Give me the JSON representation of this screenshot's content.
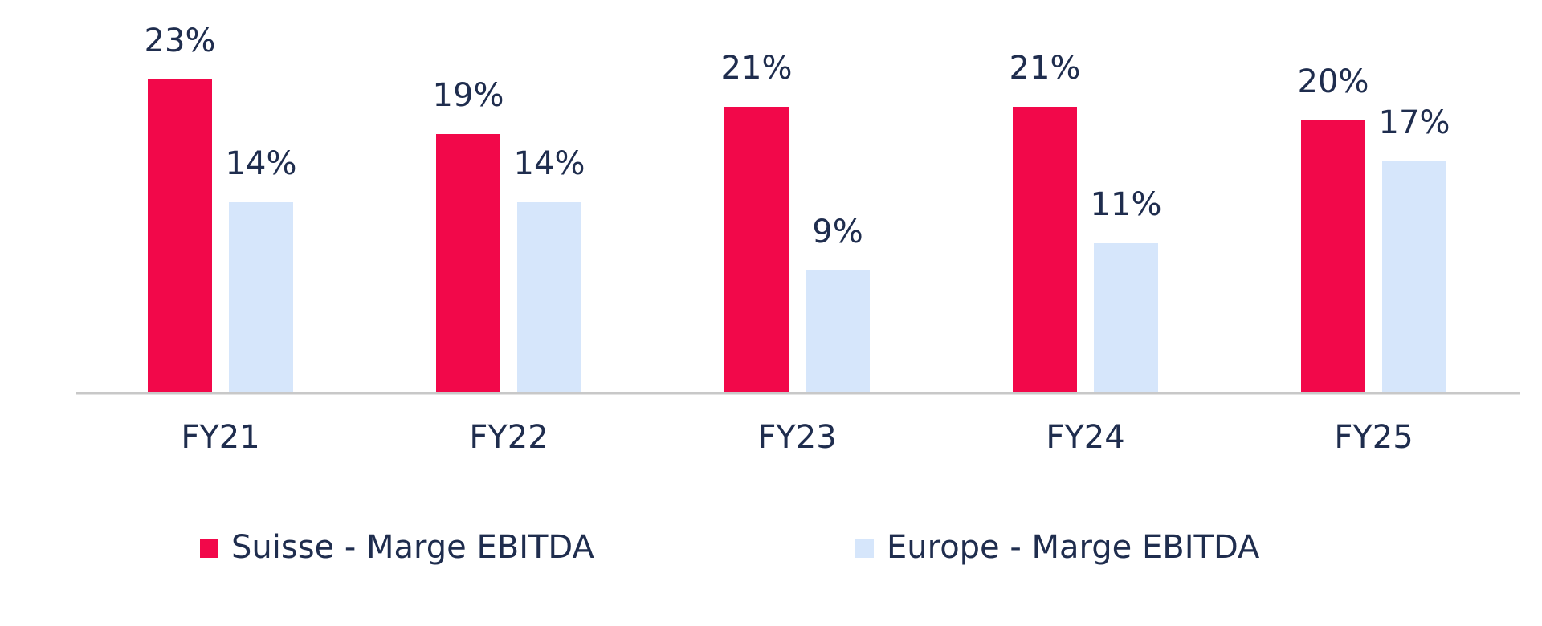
{
  "chart_data": {
    "type": "bar",
    "categories": [
      "FY21",
      "FY22",
      "FY23",
      "FY24",
      "FY25"
    ],
    "series": [
      {
        "name": "Suisse - Marge EBITDA",
        "color": "#f2084a",
        "values": [
          23,
          19,
          21,
          21,
          20
        ],
        "value_labels": [
          "23%",
          "19%",
          "21%",
          "21%",
          "20%"
        ]
      },
      {
        "name": "Europe - Marge EBITDA",
        "color": "#d6e6fb",
        "values": [
          14,
          14,
          9,
          11,
          17
        ],
        "value_labels": [
          "14%",
          "14%",
          "9%",
          "11%",
          "17%"
        ]
      }
    ]
  }
}
